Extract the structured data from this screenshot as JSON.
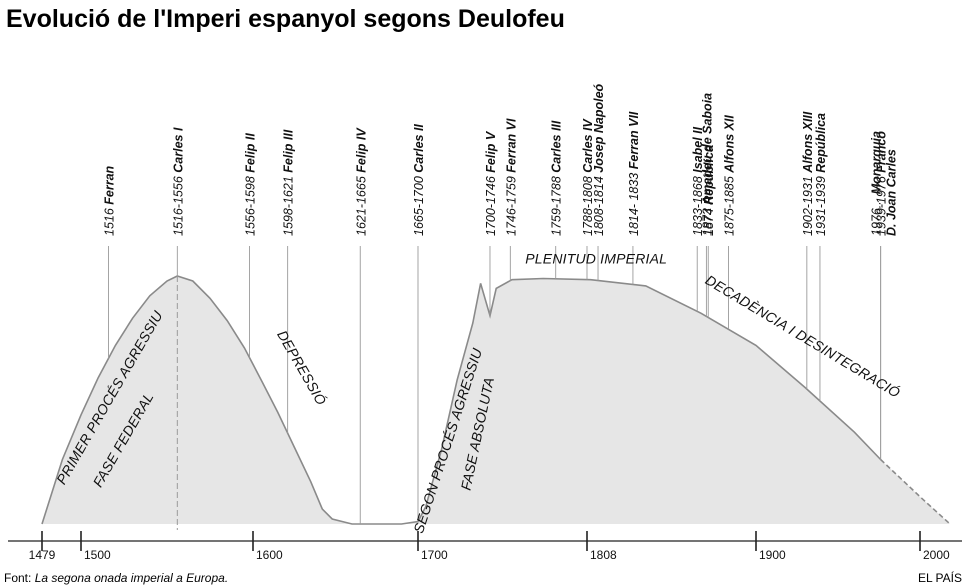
{
  "title": "Evolució de l'Imperi espanyol segons Deulofeu",
  "footer": {
    "source_prefix": "Font: ",
    "source_text": "La segona onada imperial a Europa.",
    "credit": "EL PAÍS"
  },
  "chart_data": {
    "type": "area",
    "title": "Evolució de l'Imperi espanyol segons Deulofeu",
    "xlabel": "",
    "ylabel": "",
    "xlim": [
      1479,
      2020
    ],
    "ticks": [
      1479,
      1500,
      1600,
      1700,
      1808,
      1900,
      2000
    ],
    "tick_labels": [
      "1479",
      "1500",
      "1600",
      "1700",
      "1808",
      "1900",
      "2000"
    ],
    "rulers": [
      {
        "period": "1516",
        "name": "Ferran",
        "year": 1516
      },
      {
        "period": "1516-1556",
        "name": "Carles I",
        "year": 1556
      },
      {
        "period": "1556-1598",
        "name": "Felip II",
        "year": 1598
      },
      {
        "period": "1598-1621",
        "name": "Felip III",
        "year": 1621
      },
      {
        "period": "1621-1665",
        "name": "Felip IV",
        "year": 1665
      },
      {
        "period": "1665-1700",
        "name": "Carles II",
        "year": 1700
      },
      {
        "period": "1700-1746",
        "name": "Felip V",
        "year": 1746
      },
      {
        "period": "1746-1759",
        "name": "Ferran VI",
        "year": 1759
      },
      {
        "period": "1759-1788",
        "name": "Carles III",
        "year": 1788
      },
      {
        "period": "1788-1808",
        "name": "Carles IV",
        "year": 1808
      },
      {
        "period": "1808-1814",
        "name": "Josep Napoleó",
        "year": 1814
      },
      {
        "period": "1814- 1833",
        "name": "Ferran VII",
        "year": 1833
      },
      {
        "period": "1833-1868",
        "name": "Isabel II",
        "year": 1868
      },
      {
        "period": "1873",
        "name": "Amadeu de Saboia",
        "year": 1873
      },
      {
        "period": "1874",
        "name": "República",
        "year": 1874
      },
      {
        "period": "1875-1885",
        "name": "Alfons XII",
        "year": 1885
      },
      {
        "period": "1902-1931",
        "name": "Alfons XIII",
        "year": 1931
      },
      {
        "period": "1931-1939",
        "name": "República",
        "year": 1939
      },
      {
        "period": "1939-1976",
        "name": "Franco",
        "year": 1976
      },
      {
        "period": "1976...",
        "name": "Monarquia",
        "name2": "D. Joan Carles",
        "year": 1976
      }
    ],
    "curve": [
      [
        1479,
        0.0
      ],
      [
        1490,
        0.26
      ],
      [
        1500,
        0.44
      ],
      [
        1510,
        0.59
      ],
      [
        1520,
        0.72
      ],
      [
        1530,
        0.83
      ],
      [
        1540,
        0.92
      ],
      [
        1550,
        0.98
      ],
      [
        1556,
        1.0
      ],
      [
        1565,
        0.98
      ],
      [
        1575,
        0.91
      ],
      [
        1585,
        0.82
      ],
      [
        1595,
        0.71
      ],
      [
        1605,
        0.58
      ],
      [
        1615,
        0.45
      ],
      [
        1625,
        0.31
      ],
      [
        1635,
        0.17
      ],
      [
        1642,
        0.06
      ],
      [
        1648,
        0.02
      ],
      [
        1660,
        0.0
      ],
      [
        1690,
        0.0
      ],
      [
        1700,
        0.01
      ],
      [
        1705,
        0.07
      ],
      [
        1715,
        0.3
      ],
      [
        1725,
        0.58
      ],
      [
        1735,
        0.81
      ],
      [
        1740,
        0.97
      ],
      [
        1746,
        0.84
      ],
      [
        1750,
        0.95
      ],
      [
        1760,
        0.985
      ],
      [
        1780,
        0.99
      ],
      [
        1810,
        0.985
      ],
      [
        1840,
        0.96
      ],
      [
        1870,
        0.85
      ],
      [
        1900,
        0.72
      ],
      [
        1930,
        0.55
      ],
      [
        1960,
        0.37
      ],
      [
        1976,
        0.26
      ],
      [
        2000,
        0.11
      ],
      [
        2020,
        0.0
      ]
    ],
    "peak_marker_year": 1556,
    "dashed_from_year": 1976,
    "phases": [
      {
        "label": "PRIMER PROCÉS AGRESSIU",
        "year": 1519,
        "level": 0.5,
        "angle": -60
      },
      {
        "label": "FASE FEDERAL",
        "year": 1527,
        "level": 0.33,
        "angle": -60
      },
      {
        "label": "DEPRESSIÓ",
        "year": 1627,
        "level": 0.62,
        "angle": 60
      },
      {
        "label": "SEGON PROCÉS AGRESSIU",
        "year": 1722,
        "level": 0.33,
        "angle": -72
      },
      {
        "label": "FASE ABSOLUTA",
        "year": 1741,
        "level": 0.36,
        "angle": -78
      },
      {
        "label": "PLENITUD IMPERIAL",
        "year": 1813,
        "level": 1.05,
        "angle": 0
      },
      {
        "label": "DECADÈNCIA I DESINTEGRACIÓ",
        "year": 1927,
        "level": 0.74,
        "angle": 31
      }
    ],
    "colors": {
      "fill": "#e6e6e6",
      "stroke": "#8a8a8a",
      "lines": "#9a9a9a",
      "text": "#111111"
    }
  }
}
